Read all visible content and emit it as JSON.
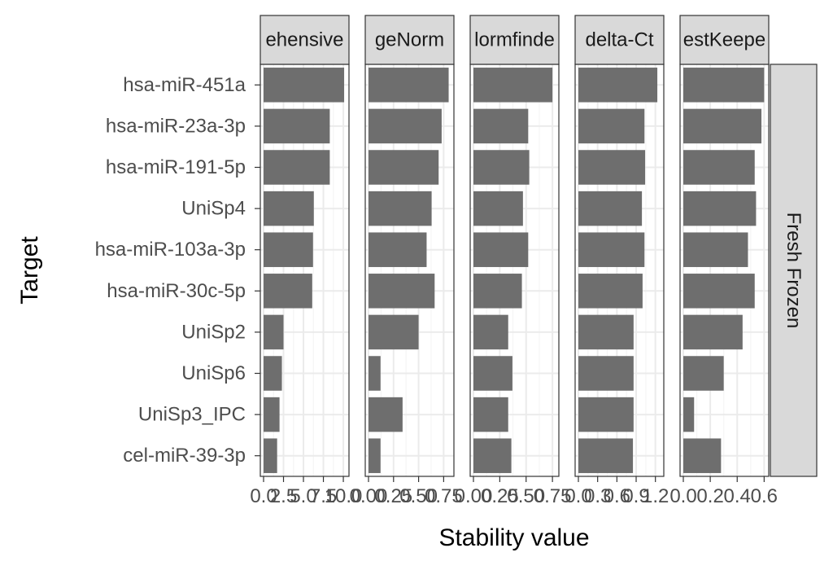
{
  "chart_data": {
    "type": "bar",
    "orientation": "horizontal",
    "facet_strip_labels": [
      "ehensive",
      "geNorm",
      "lormfinde",
      "delta-Ct",
      "estKeepe"
    ],
    "row_strip_label": "Fresh Frozen",
    "xlabel": "Stability value",
    "ylabel": "Target",
    "grid": true,
    "legend": "none",
    "categories": [
      "hsa-miR-451a",
      "hsa-miR-23a-3p",
      "hsa-miR-191-5p",
      "UniSp4",
      "hsa-miR-103a-3p",
      "hsa-miR-30c-5p",
      "UniSp2",
      "UniSp6",
      "UniSp3_IPC",
      "cel-miR-39-3p"
    ],
    "panels": [
      {
        "strip_label": "ehensive",
        "xlim": [
          0,
          10.3
        ],
        "tick_values": [
          0,
          2.5,
          5,
          7.5,
          10
        ],
        "tick_labels": [
          "0.0",
          "2.5",
          "5.0",
          "7.5",
          "10.0"
        ],
        "values": [
          10.1,
          8.3,
          8.3,
          6.3,
          6.2,
          6.1,
          2.5,
          2.3,
          2.0,
          1.7
        ]
      },
      {
        "strip_label": "geNorm",
        "xlim": [
          0,
          0.82
        ],
        "tick_values": [
          0,
          0.25,
          0.5,
          0.75
        ],
        "tick_labels": [
          "0.00",
          "0.25",
          "0.50",
          "0.75"
        ],
        "values": [
          0.8,
          0.73,
          0.7,
          0.63,
          0.58,
          0.66,
          0.5,
          0.12,
          0.34,
          0.12
        ]
      },
      {
        "strip_label": "lormfinde",
        "xlim": [
          0,
          0.78
        ],
        "tick_values": [
          0,
          0.25,
          0.5,
          0.75
        ],
        "tick_labels": [
          "0.00",
          "0.25",
          "0.50",
          "0.75"
        ],
        "values": [
          0.75,
          0.52,
          0.53,
          0.47,
          0.52,
          0.46,
          0.33,
          0.37,
          0.33,
          0.36
        ]
      },
      {
        "strip_label": "delta-Ct",
        "xlim": [
          0,
          1.28
        ],
        "tick_values": [
          0,
          0.3,
          0.6,
          0.9,
          1.2
        ],
        "tick_labels": [
          "0.0",
          "0.3",
          "0.6",
          "0.9",
          "1.2"
        ],
        "values": [
          1.23,
          1.03,
          1.04,
          0.99,
          1.03,
          1.0,
          0.86,
          0.86,
          0.86,
          0.85
        ]
      },
      {
        "strip_label": "estKeepe",
        "xlim": [
          0,
          0.61
        ],
        "tick_values": [
          0,
          0.2,
          0.4,
          0.6
        ],
        "tick_labels": [
          "0.0",
          "0.2",
          "0.4",
          "0.6"
        ],
        "values": [
          0.6,
          0.58,
          0.53,
          0.54,
          0.48,
          0.53,
          0.44,
          0.3,
          0.08,
          0.28
        ]
      }
    ]
  },
  "colors": {
    "bar": "#6e6e6e",
    "strip_fill": "#d9d9d9",
    "strip_border": "#333333",
    "panel_border": "#333333",
    "grid_major": "#ebebeb",
    "grid_minor": "#f5f5f5",
    "label_text": "#4d4d4d",
    "title_text": "#000000"
  }
}
